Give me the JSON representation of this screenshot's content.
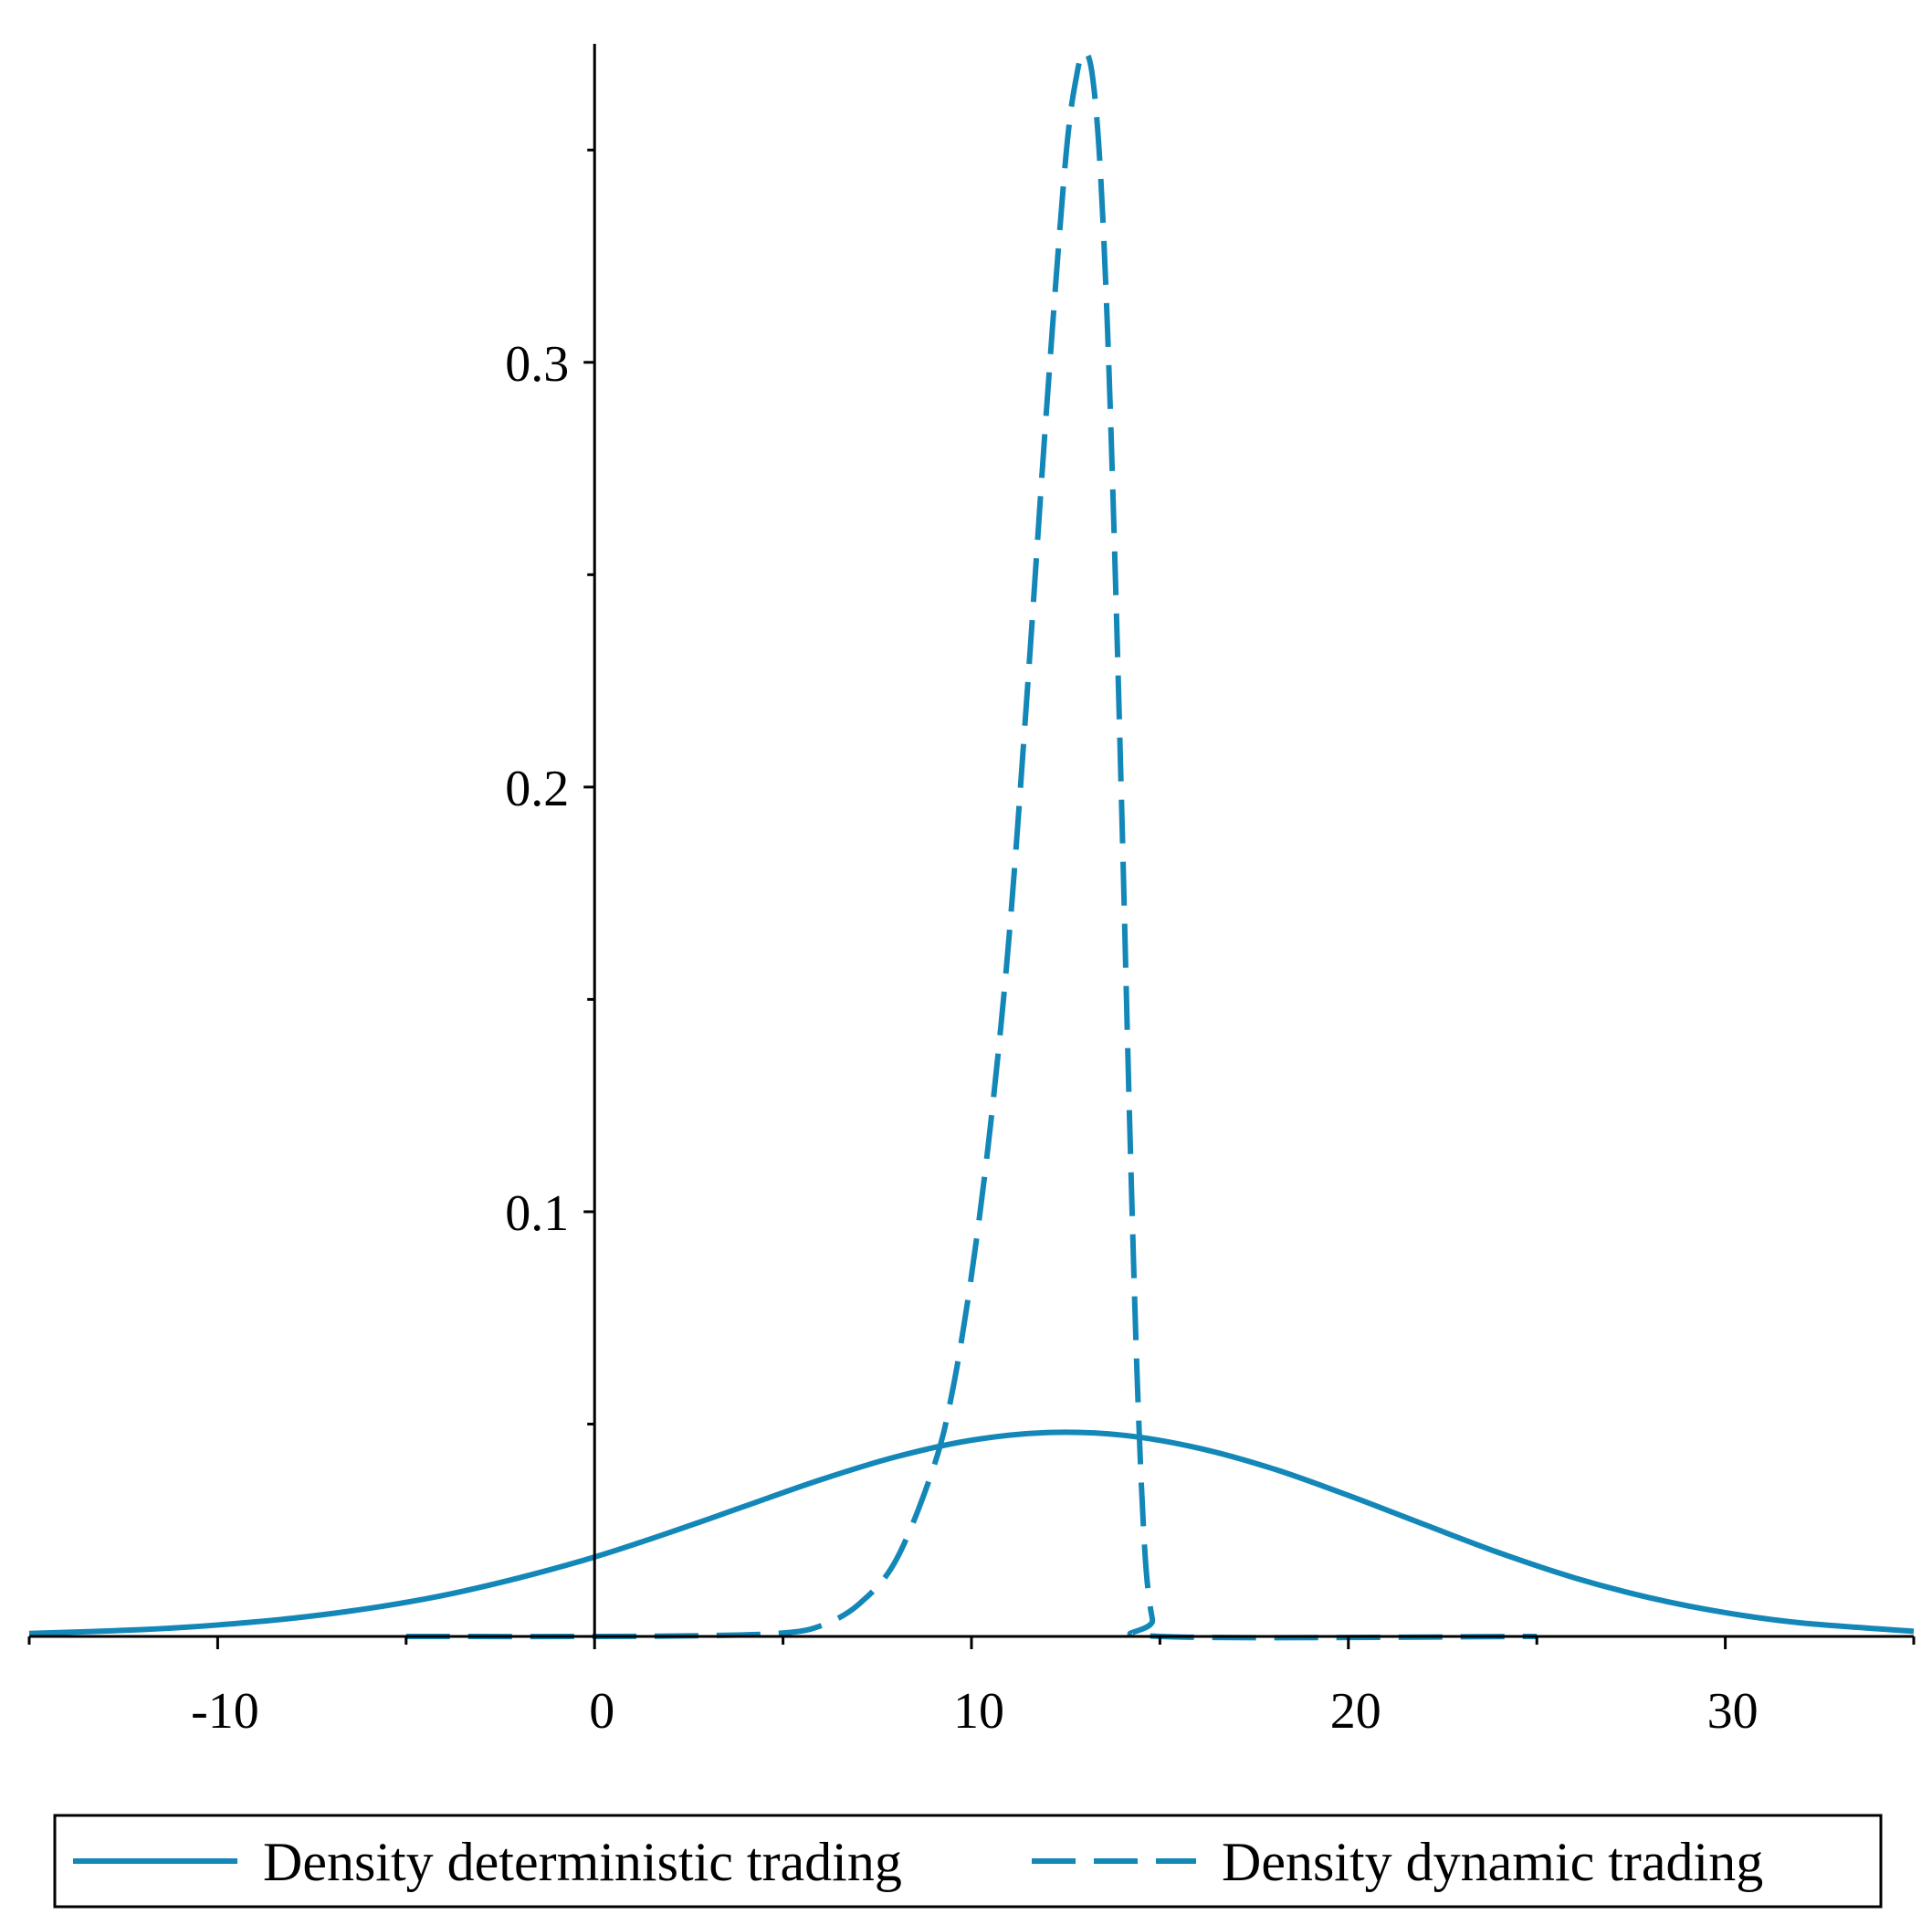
{
  "chart_data": {
    "type": "line",
    "title": "",
    "xlabel": "",
    "ylabel": "",
    "xlim": [
      -15,
      35
    ],
    "ylim": [
      0,
      0.375
    ],
    "x_ticks": [
      -10,
      0,
      10,
      20,
      30
    ],
    "x_tick_labels": [
      "-10",
      "0",
      "10",
      "20",
      "30"
    ],
    "x_minor_ticks": [
      -15,
      -5,
      5,
      15,
      25,
      35
    ],
    "y_ticks": [
      0.1,
      0.2,
      0.3
    ],
    "y_tick_labels": [
      "0.1",
      "0.2",
      "0.3"
    ],
    "y_minor_ticks": [
      0.05,
      0.15,
      0.25,
      0.35
    ],
    "grid": false,
    "legend_position": "bottom",
    "series": [
      {
        "name": "Density deterministic trading",
        "style": "solid",
        "color": "#1287b8",
        "x": [
          -15,
          -12,
          -10,
          -8,
          -6,
          -4,
          -2,
          0,
          2,
          4,
          6,
          8,
          10,
          12,
          14,
          16,
          18,
          20,
          22,
          24,
          26,
          28,
          30,
          32,
          35
        ],
        "y": [
          0.0007,
          0.0016,
          0.0027,
          0.0043,
          0.0066,
          0.0097,
          0.0138,
          0.0187,
          0.0245,
          0.0307,
          0.0369,
          0.0423,
          0.0462,
          0.048,
          0.0474,
          0.0444,
          0.0395,
          0.0332,
          0.0264,
          0.0197,
          0.0138,
          0.0091,
          0.0056,
          0.0032,
          0.0012
        ]
      },
      {
        "name": "Density dynamic trading",
        "style": "dashed",
        "color": "#1287b8",
        "x": [
          -5,
          0,
          3,
          5,
          6,
          7,
          8,
          9,
          9.5,
          10,
          10.5,
          11,
          11.5,
          12,
          12.5,
          12.8,
          13,
          13.2,
          13.4,
          13.6,
          13.8,
          14,
          14.2,
          14.4,
          14.6,
          14.8,
          15,
          25
        ],
        "y": [
          0,
          0,
          0.0002,
          0.0008,
          0.0025,
          0.0075,
          0.018,
          0.04,
          0.058,
          0.085,
          0.12,
          0.165,
          0.225,
          0.29,
          0.348,
          0.368,
          0.373,
          0.368,
          0.348,
          0.31,
          0.255,
          0.19,
          0.12,
          0.06,
          0.02,
          0.004,
          0,
          0
        ]
      }
    ]
  },
  "legend": {
    "items": [
      {
        "label": "Density deterministic trading"
      },
      {
        "label": "Density dynamic trading"
      }
    ]
  },
  "colors": {
    "series": "#1287b8",
    "axis": "#000000"
  }
}
